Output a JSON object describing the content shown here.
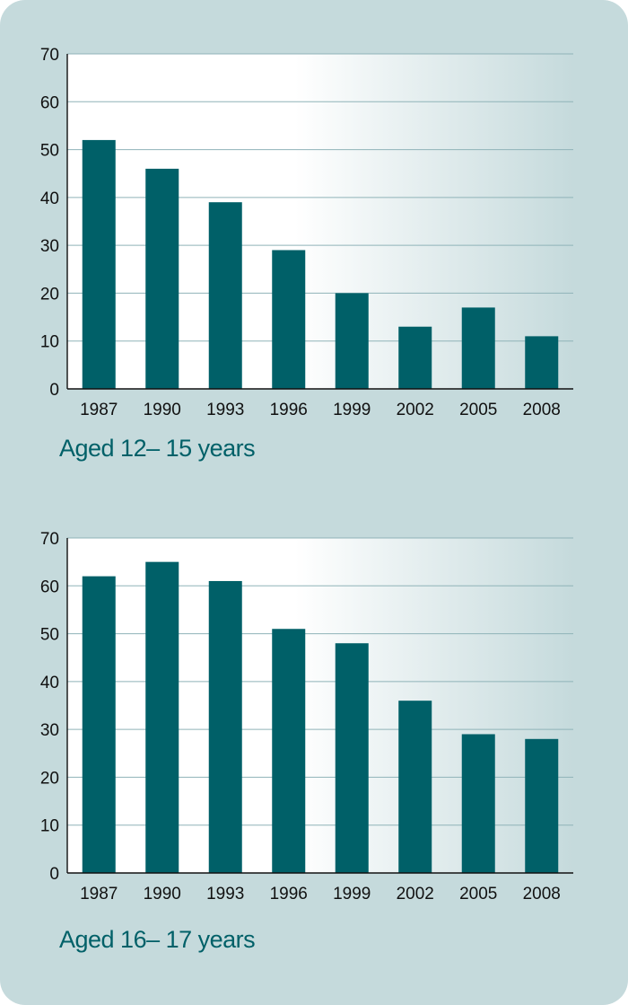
{
  "colors": {
    "bar": "#006068",
    "panel": "#c5dadc",
    "caption": "#006068",
    "grid": "#8fb3b8"
  },
  "chart_data": [
    {
      "type": "bar",
      "title": "Aged 12– 15 years",
      "categories": [
        "1987",
        "1990",
        "1993",
        "1996",
        "1999",
        "2002",
        "2005",
        "2008"
      ],
      "values": [
        52,
        46,
        39,
        29,
        20,
        13,
        17,
        11
      ],
      "ylim": [
        0,
        70
      ],
      "yticks": [
        0,
        10,
        20,
        30,
        40,
        50,
        60,
        70
      ],
      "ytick_labels": [
        "0",
        "10",
        "20",
        "30",
        "40",
        "50",
        "60",
        "70"
      ],
      "grid": true
    },
    {
      "type": "bar",
      "title": "Aged 16– 17 years",
      "categories": [
        "1987",
        "1990",
        "1993",
        "1996",
        "1999",
        "2002",
        "2005",
        "2008"
      ],
      "values": [
        62,
        65,
        61,
        51,
        48,
        36,
        29,
        28
      ],
      "ylim": [
        0,
        70
      ],
      "yticks": [
        0,
        10,
        20,
        30,
        40,
        50,
        60,
        70
      ],
      "ytick_labels": [
        "0",
        "10",
        "20",
        "30",
        "40",
        "50",
        "60",
        "70"
      ],
      "grid": true
    }
  ]
}
